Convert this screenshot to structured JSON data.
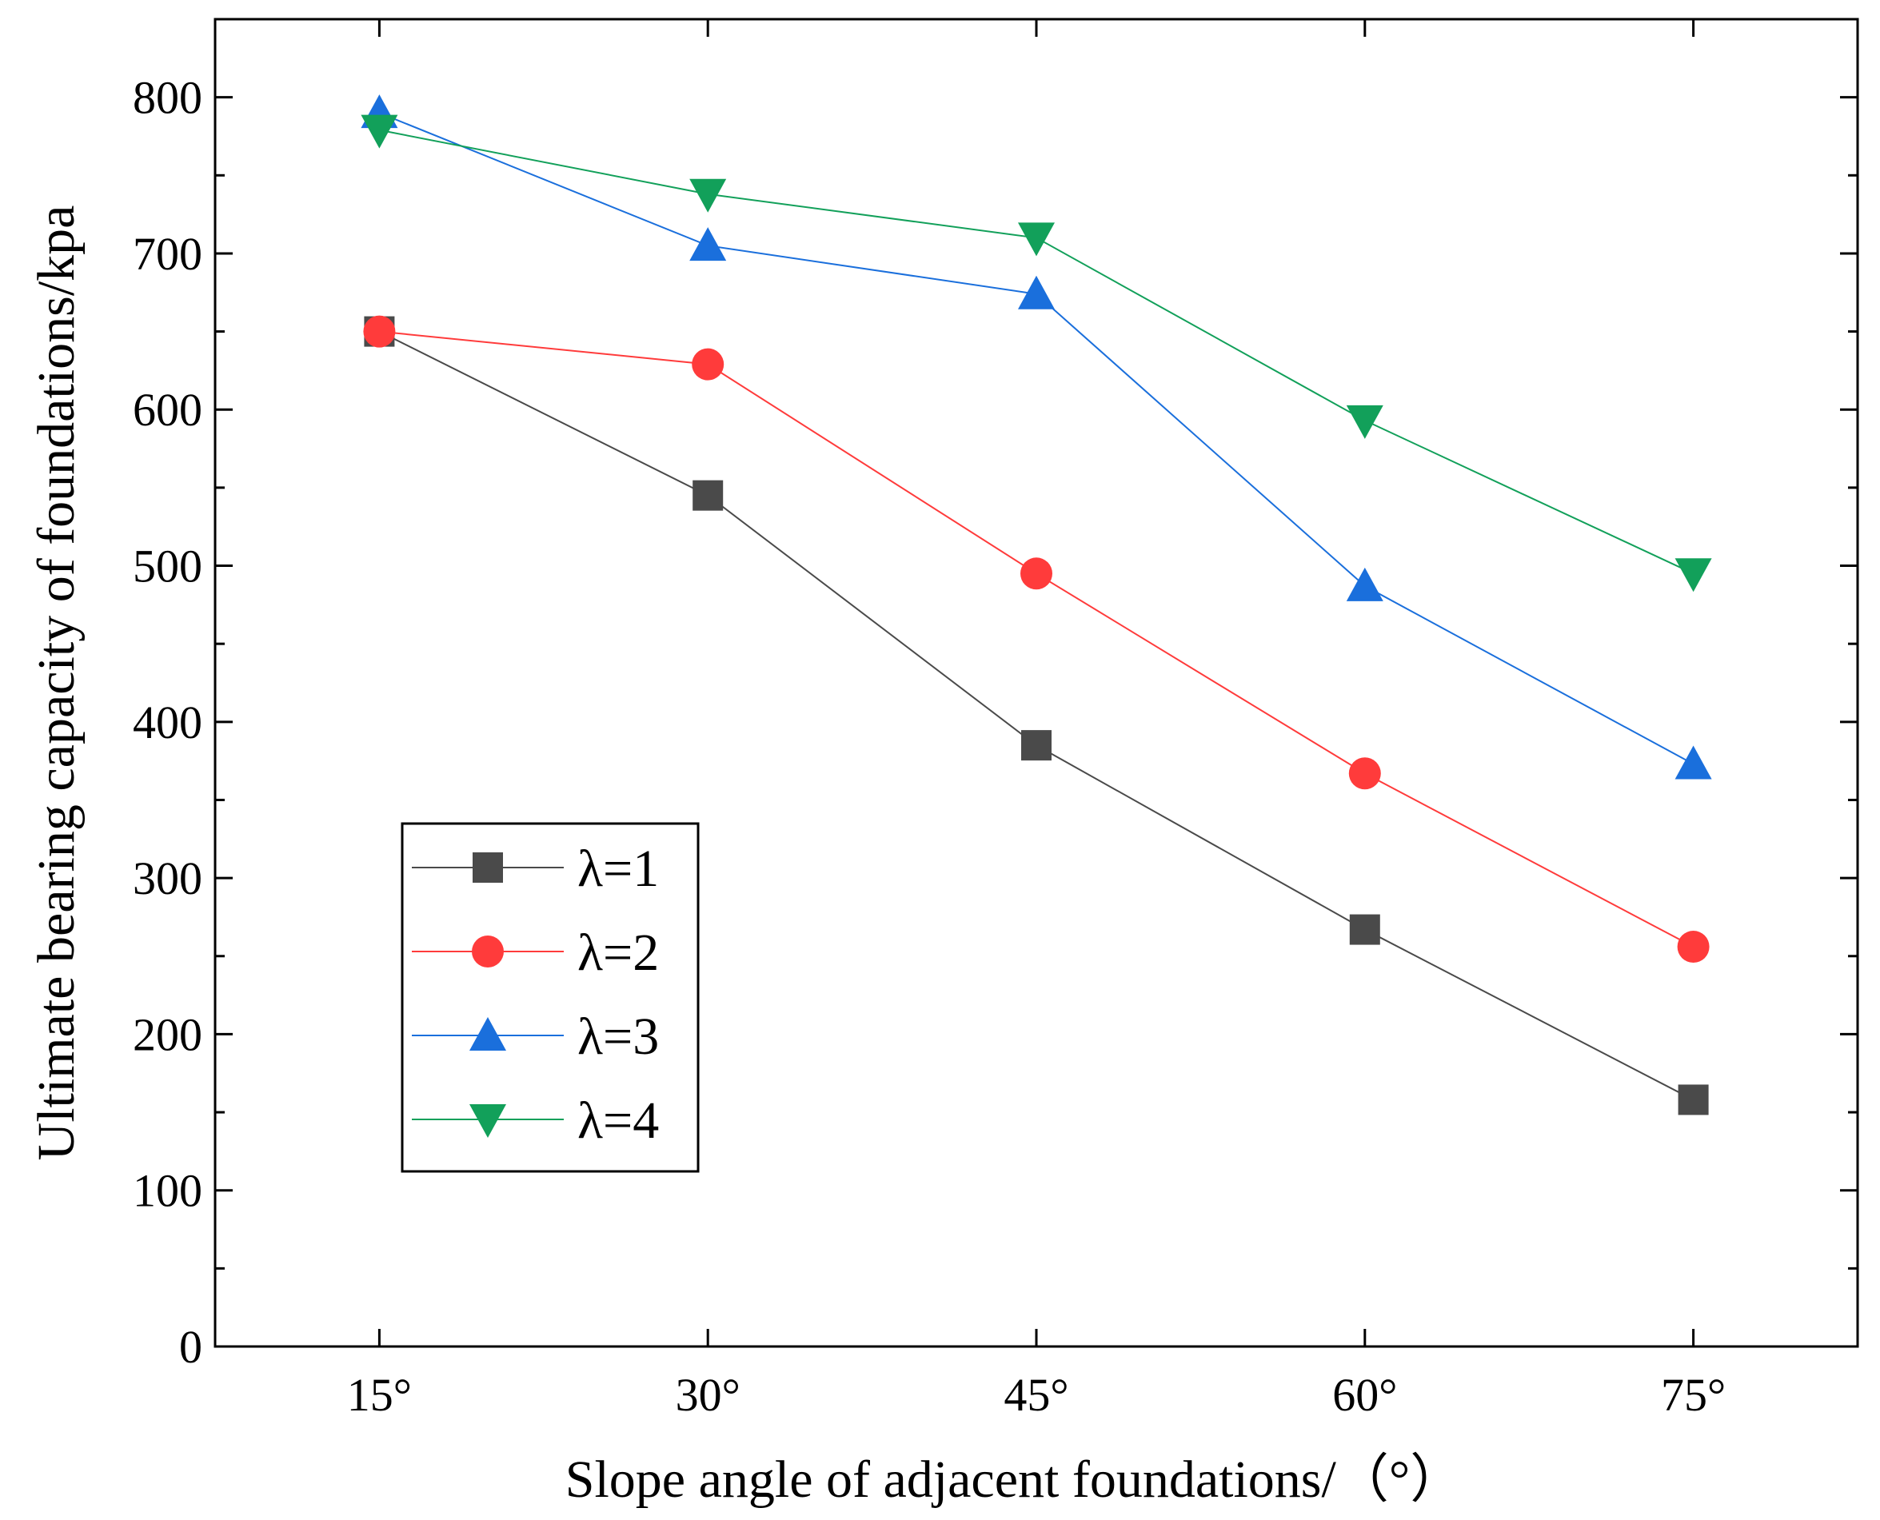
{
  "chart_data": {
    "type": "line",
    "title": "",
    "xlabel": "Slope angle of adjacent foundations/（°）",
    "ylabel": "Ultimate bearing capacity of foundations/kpa",
    "categories": [
      "15°",
      "30°",
      "45°",
      "60°",
      "75°"
    ],
    "x_values": [
      15,
      30,
      45,
      60,
      75
    ],
    "xlim": [
      7.5,
      82.5
    ],
    "ylim": [
      0,
      850
    ],
    "yticks": [
      0,
      100,
      200,
      300,
      400,
      500,
      600,
      700,
      800
    ],
    "ytick_labels": [
      "0",
      "100",
      "200",
      "300",
      "400",
      "500",
      "600",
      "700",
      "800"
    ],
    "grid": false,
    "legend_position": "bottom-left",
    "series": [
      {
        "name": "λ=1",
        "color": "#4a4a4a",
        "marker": "square",
        "values": [
          650,
          545,
          385,
          267,
          158
        ]
      },
      {
        "name": "λ=2",
        "color": "#ff3b3b",
        "marker": "circle",
        "values": [
          650,
          629,
          495,
          367,
          256
        ]
      },
      {
        "name": "λ=3",
        "color": "#1a6fdc",
        "marker": "triangle-up",
        "values": [
          790,
          705,
          674,
          487,
          373
        ]
      },
      {
        "name": "λ=4",
        "color": "#12a05a",
        "marker": "triangle-down",
        "values": [
          779,
          738,
          710,
          593,
          495
        ]
      }
    ]
  }
}
